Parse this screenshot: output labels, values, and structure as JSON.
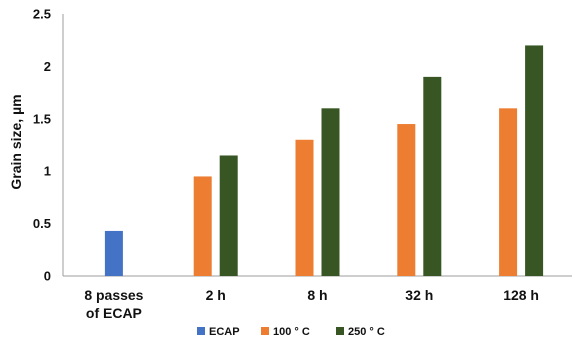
{
  "chart_data": {
    "type": "bar",
    "title": "",
    "xlabel": "",
    "ylabel": "Grain size, µm",
    "ylim": [
      0,
      2.5
    ],
    "yticks": [
      "0",
      "0.5",
      "1",
      "1.5",
      "2",
      "2.5"
    ],
    "ytick_values": [
      0,
      0.5,
      1,
      1.5,
      2,
      2.5
    ],
    "grid": false,
    "legend_position": "bottom",
    "categories": [
      [
        "8 passes",
        "of ECAP"
      ],
      [
        "2 h"
      ],
      [
        "8 h"
      ],
      [
        "32 h"
      ],
      [
        "128 h"
      ]
    ],
    "series": [
      {
        "name": "ECAP",
        "color": "#4472C4",
        "values": [
          0.43,
          null,
          null,
          null,
          null
        ]
      },
      {
        "name": "100 ° C",
        "color": "#ED7D31",
        "values": [
          null,
          0.95,
          1.3,
          1.45,
          1.6
        ]
      },
      {
        "name": "250 ° C",
        "color": "#375623",
        "values": [
          null,
          1.15,
          1.6,
          1.9,
          2.2
        ]
      }
    ]
  }
}
